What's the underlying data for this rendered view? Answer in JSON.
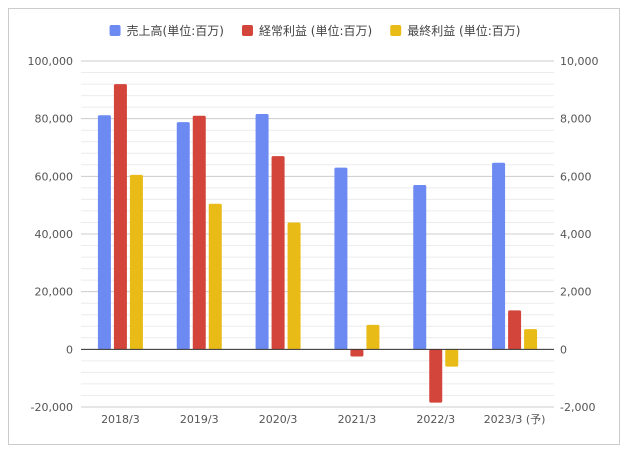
{
  "chart_data": {
    "type": "bar",
    "categories": [
      "2018/3",
      "2019/3",
      "2020/3",
      "2021/3",
      "2022/3",
      "2023/3 (予)"
    ],
    "series": [
      {
        "name": "売上高(単位:百万)",
        "axis": "left",
        "color": "#6d8af2",
        "values": [
          81200,
          78800,
          81600,
          63000,
          57000,
          64700
        ]
      },
      {
        "name": "経常利益 (単位:百万)",
        "axis": "right",
        "color": "#d3443a",
        "values": [
          9200,
          8100,
          6700,
          -250,
          -1850,
          1350
        ]
      },
      {
        "name": "最終利益 (単位:百万)",
        "axis": "right",
        "color": "#e9bb17",
        "values": [
          6050,
          5050,
          4400,
          850,
          -600,
          700
        ]
      }
    ],
    "left_axis": {
      "min": -20000,
      "max": 100000,
      "ticks": [
        -20000,
        0,
        20000,
        40000,
        60000,
        80000,
        100000
      ],
      "tick_labels": [
        "-20,000",
        "0",
        "20,000",
        "40,000",
        "60,000",
        "80,000",
        "100,000"
      ]
    },
    "right_axis": {
      "min": -2000,
      "max": 10000,
      "ticks": [
        -2000,
        0,
        2000,
        4000,
        6000,
        8000,
        10000
      ],
      "tick_labels": [
        "-2,000",
        "0",
        "2,000",
        "4,000",
        "6,000",
        "8,000",
        "10,000"
      ]
    },
    "grid": true,
    "legend_position": "top"
  }
}
